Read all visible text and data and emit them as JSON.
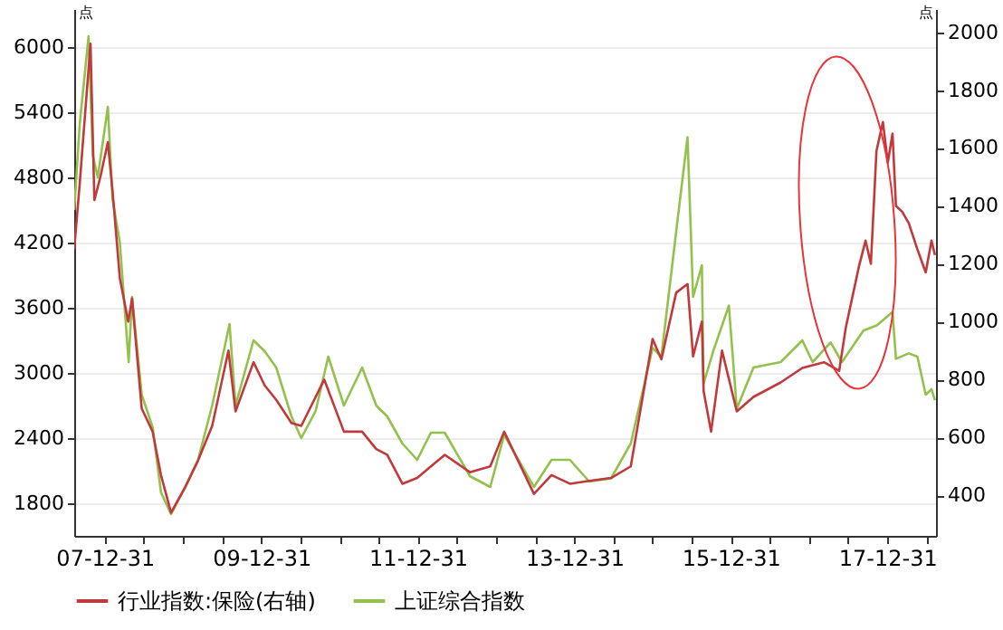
{
  "chart_data": {
    "type": "line",
    "ylabel": "点",
    "y2label": "点",
    "xlim": [
      "2007-08-10",
      "2018-08-15"
    ],
    "xticks": [
      {
        "value": "2007-12-31",
        "label": "07-12-31"
      },
      {
        "value": "2008-06-30",
        "label": null
      },
      {
        "value": "2008-12-31",
        "label": null
      },
      {
        "value": "2009-06-30",
        "label": null
      },
      {
        "value": "2009-12-31",
        "label": "09-12-31"
      },
      {
        "value": "2010-06-30",
        "label": null
      },
      {
        "value": "2010-12-31",
        "label": null
      },
      {
        "value": "2011-06-30",
        "label": null
      },
      {
        "value": "2011-12-31",
        "label": "11-12-31"
      },
      {
        "value": "2012-06-30",
        "label": null
      },
      {
        "value": "2012-12-31",
        "label": null
      },
      {
        "value": "2013-06-30",
        "label": null
      },
      {
        "value": "2013-12-31",
        "label": "13-12-31"
      },
      {
        "value": "2014-06-30",
        "label": null
      },
      {
        "value": "2014-12-31",
        "label": null
      },
      {
        "value": "2015-06-30",
        "label": null
      },
      {
        "value": "2015-12-31",
        "label": "15-12-31"
      },
      {
        "value": "2016-06-30",
        "label": null
      },
      {
        "value": "2016-12-31",
        "label": null
      },
      {
        "value": "2017-06-30",
        "label": null
      },
      {
        "value": "2017-12-31",
        "label": "17-12-31"
      },
      {
        "value": "2018-06-30",
        "label": null
      }
    ],
    "ylim": [
      1500,
      6350
    ],
    "yticks": [
      1800,
      2400,
      3000,
      3600,
      4200,
      4800,
      5400,
      6000
    ],
    "y2lim": [
      260,
      2080
    ],
    "y2ticks": [
      400,
      600,
      800,
      1000,
      1200,
      1400,
      1600,
      1800,
      2000
    ],
    "grid": "y",
    "legend": "bottom",
    "line_style": "solid",
    "series": [
      {
        "name": "行业指数:保险(右轴)",
        "color": "#c0393b",
        "axis": "y2",
        "x": [
          "2007-08-10",
          "2007-09-05",
          "2007-10-25",
          "2007-11-12",
          "2007-12-10",
          "2008-01-14",
          "2008-02-05",
          "2008-03-10",
          "2008-04-18",
          "2008-05-06",
          "2008-06-20",
          "2008-08-10",
          "2008-09-18",
          "2008-11-04",
          "2009-01-10",
          "2009-03-10",
          "2009-05-15",
          "2009-07-30",
          "2009-09-01",
          "2009-11-24",
          "2010-01-15",
          "2010-03-10",
          "2010-05-20",
          "2010-07-05",
          "2010-10-20",
          "2011-01-20",
          "2011-04-15",
          "2011-06-20",
          "2011-08-10",
          "2011-10-20",
          "2011-12-28",
          "2012-03-01",
          "2012-05-05",
          "2012-08-30",
          "2012-12-03",
          "2013-02-06",
          "2013-06-25",
          "2013-09-15",
          "2013-12-10",
          "2014-03-10",
          "2014-06-20",
          "2014-09-20",
          "2014-12-31",
          "2015-02-10",
          "2015-04-20",
          "2015-06-12",
          "2015-07-08",
          "2015-08-18",
          "2015-08-26",
          "2015-09-30",
          "2015-11-20",
          "2016-01-28",
          "2016-04-15",
          "2016-08-20",
          "2016-11-29",
          "2017-03-10",
          "2017-05-20",
          "2017-06-20",
          "2017-08-20",
          "2017-09-20",
          "2017-10-15",
          "2017-11-10",
          "2017-12-10",
          "2018-01-02",
          "2018-01-24",
          "2018-02-09",
          "2018-03-10",
          "2018-04-10",
          "2018-05-20",
          "2018-06-28",
          "2018-07-25",
          "2018-08-10"
        ],
        "values": [
          1250,
          1480,
          1960,
          1420,
          1500,
          1620,
          1450,
          1150,
          1000,
          1080,
          700,
          620,
          470,
          340,
          430,
          520,
          640,
          900,
          690,
          860,
          780,
          730,
          650,
          640,
          800,
          620,
          620,
          560,
          540,
          440,
          460,
          500,
          540,
          480,
          500,
          620,
          405,
          470,
          440,
          450,
          460,
          500,
          940,
          870,
          1100,
          1130,
          880,
          1000,
          760,
          620,
          900,
          690,
          740,
          790,
          840,
          860,
          830,
          980,
          1190,
          1280,
          1200,
          1590,
          1690,
          1550,
          1650,
          1400,
          1380,
          1340,
          1250,
          1170,
          1280,
          1230
        ]
      },
      {
        "name": "上证综合指数",
        "color": "#92c14d",
        "x": [
          "2007-08-10",
          "2007-09-05",
          "2007-10-16",
          "2007-11-05",
          "2007-11-28",
          "2008-01-14",
          "2008-02-05",
          "2008-03-10",
          "2008-04-20",
          "2008-05-06",
          "2008-06-20",
          "2008-08-10",
          "2008-09-18",
          "2008-11-04",
          "2009-01-10",
          "2009-03-10",
          "2009-05-15",
          "2009-08-04",
          "2009-09-01",
          "2009-11-24",
          "2010-01-15",
          "2010-03-10",
          "2010-05-20",
          "2010-07-05",
          "2010-09-10",
          "2010-11-08",
          "2011-01-20",
          "2011-04-15",
          "2011-06-20",
          "2011-08-10",
          "2011-10-20",
          "2011-12-28",
          "2012-03-01",
          "2012-05-05",
          "2012-08-30",
          "2012-12-03",
          "2013-02-06",
          "2013-06-25",
          "2013-09-15",
          "2013-12-10",
          "2014-03-10",
          "2014-06-20",
          "2014-09-20",
          "2014-12-31",
          "2015-02-10",
          "2015-04-20",
          "2015-06-12",
          "2015-07-08",
          "2015-08-18",
          "2015-08-26",
          "2015-10-10",
          "2015-12-22",
          "2016-01-28",
          "2016-04-15",
          "2016-08-20",
          "2016-11-29",
          "2017-01-16",
          "2017-04-10",
          "2017-06-02",
          "2017-09-10",
          "2017-11-13",
          "2018-01-24",
          "2018-02-09",
          "2018-04-10",
          "2018-05-20",
          "2018-06-28",
          "2018-07-25",
          "2018-08-10"
        ],
        "values": [
          4500,
          5300,
          6100,
          5000,
          4800,
          5450,
          4600,
          4200,
          3100,
          3700,
          2800,
          2500,
          1900,
          1700,
          1950,
          2200,
          2700,
          3450,
          2700,
          3300,
          3200,
          3050,
          2600,
          2400,
          2650,
          3150,
          2700,
          3050,
          2700,
          2600,
          2350,
          2200,
          2450,
          2450,
          2050,
          1950,
          2430,
          1950,
          2200,
          2200,
          2000,
          2030,
          2350,
          3230,
          3150,
          4300,
          5170,
          3700,
          3990,
          2900,
          3200,
          3620,
          2670,
          3050,
          3100,
          3300,
          3100,
          3280,
          3100,
          3390,
          3440,
          3560,
          3130,
          3180,
          3150,
          2800,
          2850,
          2750
        ]
      }
    ]
  }
}
